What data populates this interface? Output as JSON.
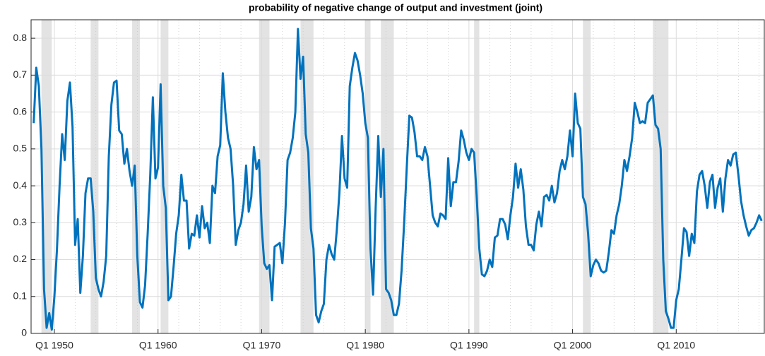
{
  "chart_data": {
    "type": "line",
    "title": "probability of negative change of output and investment (joint)",
    "color": "#0072bd",
    "grid": true,
    "xlim": [
      1947.75,
      2018.5
    ],
    "ylim": [
      0,
      0.85
    ],
    "yticks": [
      0,
      0.1,
      0.2,
      0.3,
      0.4,
      0.5,
      0.6,
      0.7,
      0.8
    ],
    "xticks": [
      {
        "value": 1950,
        "label": "Q1 1950"
      },
      {
        "value": 1960,
        "label": "Q1 1960"
      },
      {
        "value": 1970,
        "label": "Q1 1970"
      },
      {
        "value": 1980,
        "label": "Q1 1980"
      },
      {
        "value": 1990,
        "label": "Q1 1990"
      },
      {
        "value": 2000,
        "label": "Q1 2000"
      },
      {
        "value": 2010,
        "label": "Q1 2010"
      }
    ],
    "x_minor_grid": [
      1952,
      1954,
      1956,
      1958,
      1962,
      1964,
      1966,
      1968,
      1972,
      1974,
      1976,
      1978,
      1982,
      1984,
      1986,
      1988,
      1992,
      1994,
      1996,
      1998,
      2002,
      2004,
      2006,
      2008,
      2012,
      2014,
      2016,
      2018
    ],
    "recessions": [
      [
        1948.75,
        1949.75
      ],
      [
        1953.5,
        1954.25
      ],
      [
        1957.5,
        1958.25
      ],
      [
        1960.25,
        1961.0
      ],
      [
        1969.75,
        1970.75
      ],
      [
        1973.75,
        1975.0
      ],
      [
        1980.0,
        1980.5
      ],
      [
        1981.5,
        1982.75
      ],
      [
        1990.5,
        1991.0
      ],
      [
        2001.0,
        2001.75
      ],
      [
        2007.75,
        2009.25
      ]
    ],
    "x": [
      1948,
      1948.25,
      1948.5,
      1948.75,
      1949,
      1949.25,
      1949.5,
      1949.75,
      1950,
      1950.25,
      1950.5,
      1950.75,
      1951,
      1951.25,
      1951.5,
      1951.75,
      1952,
      1952.25,
      1952.5,
      1952.75,
      1953,
      1953.25,
      1953.5,
      1953.75,
      1954,
      1954.25,
      1954.5,
      1954.75,
      1955,
      1955.25,
      1955.5,
      1955.75,
      1956,
      1956.25,
      1956.5,
      1956.75,
      1957,
      1957.25,
      1957.5,
      1957.75,
      1958,
      1958.25,
      1958.5,
      1958.75,
      1959,
      1959.25,
      1959.5,
      1959.75,
      1960,
      1960.25,
      1960.5,
      1960.75,
      1961,
      1961.25,
      1961.5,
      1961.75,
      1962,
      1962.25,
      1962.5,
      1962.75,
      1963,
      1963.25,
      1963.5,
      1963.75,
      1964,
      1964.25,
      1964.5,
      1964.75,
      1965,
      1965.25,
      1965.5,
      1965.75,
      1966,
      1966.25,
      1966.5,
      1966.75,
      1967,
      1967.25,
      1967.5,
      1967.75,
      1968,
      1968.25,
      1968.5,
      1968.75,
      1969,
      1969.25,
      1969.5,
      1969.75,
      1970,
      1970.25,
      1970.5,
      1970.75,
      1971,
      1971.25,
      1971.5,
      1971.75,
      1972,
      1972.25,
      1972.5,
      1972.75,
      1973,
      1973.25,
      1973.5,
      1973.75,
      1974,
      1974.25,
      1974.5,
      1974.75,
      1975,
      1975.25,
      1975.5,
      1975.75,
      1976,
      1976.25,
      1976.5,
      1976.75,
      1977,
      1977.25,
      1977.5,
      1977.75,
      1978,
      1978.25,
      1978.5,
      1978.75,
      1979,
      1979.25,
      1979.5,
      1979.75,
      1980,
      1980.25,
      1980.5,
      1980.75,
      1981,
      1981.25,
      1981.5,
      1981.75,
      1982,
      1982.25,
      1982.5,
      1982.75,
      1983,
      1983.25,
      1983.5,
      1983.75,
      1984,
      1984.25,
      1984.5,
      1984.75,
      1985,
      1985.25,
      1985.5,
      1985.75,
      1986,
      1986.25,
      1986.5,
      1986.75,
      1987,
      1987.25,
      1987.5,
      1987.75,
      1988,
      1988.25,
      1988.5,
      1988.75,
      1989,
      1989.25,
      1989.5,
      1989.75,
      1990,
      1990.25,
      1990.5,
      1990.75,
      1991,
      1991.25,
      1991.5,
      1991.75,
      1992,
      1992.25,
      1992.5,
      1992.75,
      1993,
      1993.25,
      1993.5,
      1993.75,
      1994,
      1994.25,
      1994.5,
      1994.75,
      1995,
      1995.25,
      1995.5,
      1995.75,
      1996,
      1996.25,
      1996.5,
      1996.75,
      1997,
      1997.25,
      1997.5,
      1997.75,
      1998,
      1998.25,
      1998.5,
      1998.75,
      1999,
      1999.25,
      1999.5,
      1999.75,
      2000,
      2000.25,
      2000.5,
      2000.75,
      2001,
      2001.25,
      2001.5,
      2001.75,
      2002,
      2002.25,
      2002.5,
      2002.75,
      2003,
      2003.25,
      2003.5,
      2003.75,
      2004,
      2004.25,
      2004.5,
      2004.75,
      2005,
      2005.25,
      2005.5,
      2005.75,
      2006,
      2006.25,
      2006.5,
      2006.75,
      2007,
      2007.25,
      2007.5,
      2007.75,
      2008,
      2008.25,
      2008.5,
      2008.75,
      2009,
      2009.25,
      2009.5,
      2009.75,
      2010,
      2010.25,
      2010.5,
      2010.75,
      2011,
      2011.25,
      2011.5,
      2011.75,
      2012,
      2012.25,
      2012.5,
      2012.75,
      2013,
      2013.25,
      2013.5,
      2013.75,
      2014,
      2014.25,
      2014.5,
      2014.75,
      2015,
      2015.25,
      2015.5,
      2015.75,
      2016,
      2016.25,
      2016.5,
      2016.75,
      2017,
      2017.25,
      2017.5,
      2017.75,
      2018,
      2018.25
    ],
    "values": [
      0.57,
      0.72,
      0.67,
      0.5,
      0.12,
      0.015,
      0.055,
      0.01,
      0.1,
      0.23,
      0.4,
      0.54,
      0.47,
      0.63,
      0.68,
      0.56,
      0.24,
      0.31,
      0.11,
      0.21,
      0.38,
      0.42,
      0.42,
      0.33,
      0.15,
      0.12,
      0.1,
      0.14,
      0.21,
      0.48,
      0.62,
      0.68,
      0.685,
      0.55,
      0.54,
      0.46,
      0.5,
      0.44,
      0.4,
      0.455,
      0.21,
      0.085,
      0.07,
      0.13,
      0.27,
      0.43,
      0.64,
      0.42,
      0.45,
      0.675,
      0.4,
      0.34,
      0.09,
      0.1,
      0.18,
      0.27,
      0.32,
      0.43,
      0.36,
      0.36,
      0.23,
      0.27,
      0.265,
      0.32,
      0.26,
      0.345,
      0.285,
      0.3,
      0.245,
      0.4,
      0.38,
      0.48,
      0.51,
      0.705,
      0.6,
      0.53,
      0.5,
      0.4,
      0.24,
      0.28,
      0.3,
      0.35,
      0.455,
      0.33,
      0.37,
      0.505,
      0.445,
      0.47,
      0.29,
      0.19,
      0.175,
      0.185,
      0.09,
      0.235,
      0.24,
      0.245,
      0.19,
      0.3,
      0.47,
      0.49,
      0.53,
      0.6,
      0.825,
      0.69,
      0.75,
      0.54,
      0.49,
      0.285,
      0.23,
      0.05,
      0.03,
      0.06,
      0.08,
      0.2,
      0.24,
      0.215,
      0.2,
      0.28,
      0.38,
      0.535,
      0.42,
      0.395,
      0.67,
      0.72,
      0.76,
      0.74,
      0.7,
      0.65,
      0.57,
      0.53,
      0.23,
      0.105,
      0.34,
      0.535,
      0.37,
      0.5,
      0.12,
      0.11,
      0.09,
      0.05,
      0.05,
      0.08,
      0.17,
      0.3,
      0.45,
      0.59,
      0.585,
      0.545,
      0.48,
      0.48,
      0.47,
      0.505,
      0.48,
      0.4,
      0.32,
      0.3,
      0.29,
      0.325,
      0.32,
      0.31,
      0.475,
      0.345,
      0.41,
      0.41,
      0.465,
      0.55,
      0.525,
      0.49,
      0.47,
      0.5,
      0.49,
      0.37,
      0.23,
      0.16,
      0.155,
      0.17,
      0.2,
      0.18,
      0.26,
      0.265,
      0.31,
      0.31,
      0.295,
      0.255,
      0.32,
      0.37,
      0.46,
      0.395,
      0.445,
      0.39,
      0.29,
      0.24,
      0.24,
      0.225,
      0.295,
      0.33,
      0.29,
      0.37,
      0.375,
      0.36,
      0.4,
      0.355,
      0.38,
      0.44,
      0.47,
      0.445,
      0.48,
      0.55,
      0.48,
      0.65,
      0.57,
      0.555,
      0.37,
      0.35,
      0.27,
      0.155,
      0.185,
      0.2,
      0.19,
      0.17,
      0.165,
      0.17,
      0.22,
      0.28,
      0.27,
      0.32,
      0.35,
      0.4,
      0.47,
      0.44,
      0.48,
      0.53,
      0.625,
      0.6,
      0.57,
      0.575,
      0.57,
      0.625,
      0.635,
      0.645,
      0.565,
      0.555,
      0.5,
      0.2,
      0.06,
      0.04,
      0.015,
      0.015,
      0.09,
      0.12,
      0.2,
      0.285,
      0.275,
      0.21,
      0.27,
      0.245,
      0.385,
      0.43,
      0.44,
      0.4,
      0.34,
      0.41,
      0.43,
      0.34,
      0.395,
      0.42,
      0.33,
      0.42,
      0.47,
      0.455,
      0.485,
      0.49,
      0.43,
      0.36,
      0.32,
      0.29,
      0.265,
      0.28,
      0.285,
      0.3,
      0.32,
      0.305
    ]
  }
}
